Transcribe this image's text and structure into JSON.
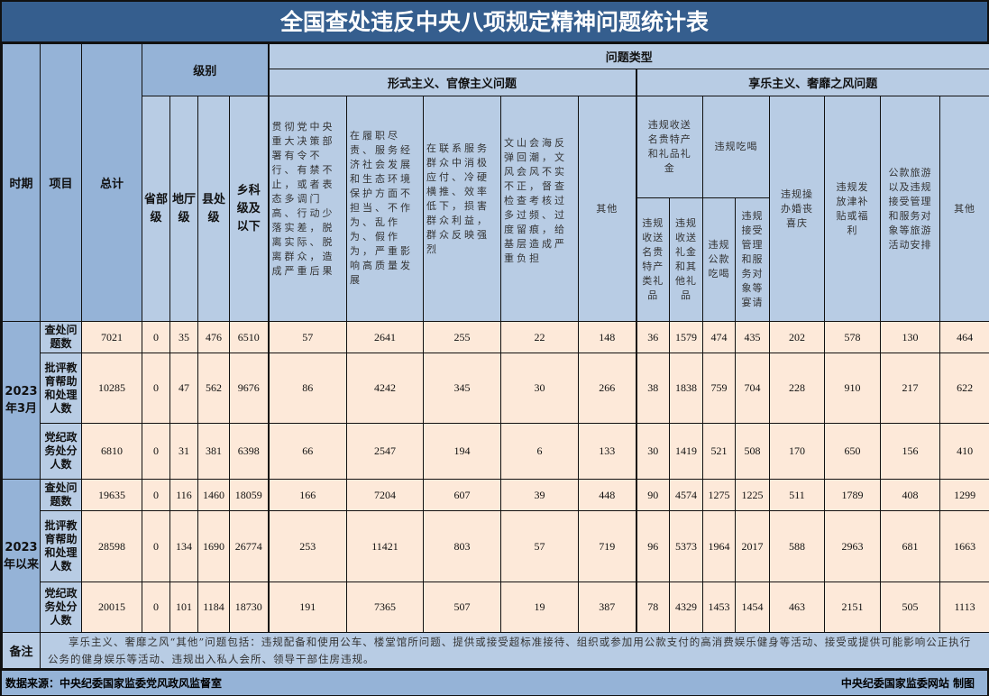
{
  "title": "全国查处违反中央八项规定精神问题统计表",
  "headers": {
    "period": "时期",
    "item": "项目",
    "total": "总计",
    "level": "级别",
    "levels": [
      "省部级",
      "地厅级",
      "县处级",
      "乡科级及以下"
    ],
    "problem_type": "问题类型",
    "formalism": "形式主义、官僚主义问题",
    "hedonism": "享乐主义、奢靡之风问题",
    "formalism_cols": [
      "贯彻党中央重大决策部署有令不行、有禁不止，或者表态多调门高、行动少落实差，脱离实际、脱离群众，造成严重后果",
      "在履职尽责、服务经济社会发展和生态环境保护方面不担当、不作为、乱作为、假作为，严重影响高质量发展",
      "在联系服务群众中消极应付、冷硬横推、效率低下，损害群众利益，群众反映强烈",
      "文山会海反弹回潮，文风会风不实不正，督查检查考核过多过频、过度留痕，给基层造成严重负担",
      "其他"
    ],
    "gift_group": "违规收送名贵特产和礼品礼金",
    "gift_cols": [
      "违规收送名贵特产类礼品",
      "违规收送礼金和其他礼品"
    ],
    "dining_group": "违规吃喝",
    "dining_cols": [
      "违规公款吃喝",
      "违规接受管理和服务对象等宴请"
    ],
    "hedonism_cols": [
      "违规操办婚丧喜庆",
      "违规发放津补贴或福利",
      "公款旅游以及违规接受管理和服务对象等旅游活动安排",
      "其他"
    ]
  },
  "groups": [
    {
      "period": "2023年3月",
      "rows": [
        {
          "item": "查处问题数",
          "values": [
            7021,
            0,
            35,
            476,
            6510,
            57,
            2641,
            255,
            22,
            148,
            36,
            1579,
            474,
            435,
            202,
            578,
            130,
            464
          ]
        },
        {
          "item": "批评教育帮助和处理人数",
          "values": [
            10285,
            0,
            47,
            562,
            9676,
            86,
            4242,
            345,
            30,
            266,
            38,
            1838,
            759,
            704,
            228,
            910,
            217,
            622
          ]
        },
        {
          "item": "党纪政务处分人数",
          "values": [
            6810,
            0,
            31,
            381,
            6398,
            66,
            2547,
            194,
            6,
            133,
            30,
            1419,
            521,
            508,
            170,
            650,
            156,
            410
          ]
        }
      ]
    },
    {
      "period": "2023年以来",
      "rows": [
        {
          "item": "查处问题数",
          "values": [
            19635,
            0,
            116,
            1460,
            18059,
            166,
            7204,
            607,
            39,
            448,
            90,
            4574,
            1275,
            1225,
            511,
            1789,
            408,
            1299
          ]
        },
        {
          "item": "批评教育帮助和处理人数",
          "values": [
            28598,
            0,
            134,
            1690,
            26774,
            253,
            11421,
            803,
            57,
            719,
            96,
            5373,
            1964,
            2017,
            588,
            2963,
            681,
            1663
          ]
        },
        {
          "item": "党纪政务处分人数",
          "values": [
            20015,
            0,
            101,
            1184,
            18730,
            191,
            7365,
            507,
            19,
            387,
            78,
            4329,
            1453,
            1454,
            463,
            2151,
            505,
            1113
          ]
        }
      ]
    }
  ],
  "remark": {
    "label": "备注",
    "text": "享乐主义、奢靡之风“其他”问题包括：违规配备和使用公车、楼堂馆所问题、提供或接受超标准接待、组织或参加用公款支付的高消费娱乐健身等活动、接受或提供可能影响公正执行公务的健身娱乐等活动、违规出入私人会所、领导干部住房违规。"
  },
  "footer": {
    "source": "数据来源：中央纪委国家监委党风政风监督室",
    "credit": "中央纪委国家监委网站 制图"
  },
  "colors": {
    "title_bg": "#355e8e",
    "header_dark": "#95b3d7",
    "header_light": "#b8cce4",
    "data_bg": "#fde9d9"
  }
}
